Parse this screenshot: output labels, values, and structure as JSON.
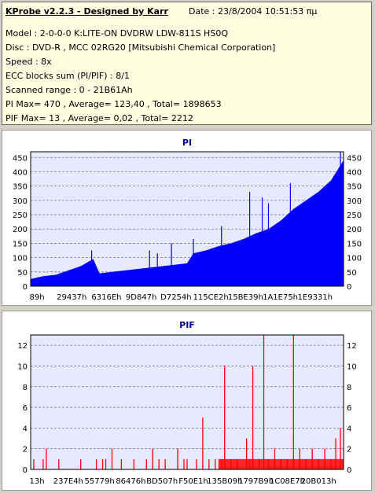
{
  "info": {
    "title": "KProbe v2.2.3 - Designed by Karr",
    "date": "Date : 23/8/2004 10:51:53 πμ",
    "lines": [
      "Model : 2-0-0-0 K:LITE-ON DVDRW LDW-811S   HS0Q",
      "Disc : DVD-R , MCC 02RG20  [Mitsubishi Chemical Corporation]",
      "Speed : 8x",
      "ECC blocks sum (PI/PIF) : 8/1",
      "Scanned range : 0 - 21B61Ah",
      "PI Max= 470 , Average= 123,40 , Total= 1898653",
      "PIF Max= 13 , Average= 0,02 , Total= 2212"
    ]
  },
  "colors": {
    "pi_fill": "#0000ff",
    "pif_bar": "#ff0000",
    "plot_bg": "#e8e8ff",
    "title": "#000080"
  },
  "chart_data": [
    {
      "type": "area",
      "title": "PI",
      "ylim": [
        0,
        470
      ],
      "yticks": [
        0,
        50,
        100,
        150,
        200,
        250,
        300,
        350,
        400,
        450
      ],
      "xtick_labels": [
        "89h",
        "29437h",
        "6316Eh",
        "9D847h",
        "D7254h",
        "115CE2h",
        "15BE39h",
        "1A1E75h",
        "1E9331h"
      ],
      "x": [
        0,
        0.04,
        0.08,
        0.12,
        0.16,
        0.2,
        0.22,
        0.26,
        0.3,
        0.34,
        0.38,
        0.42,
        0.46,
        0.5,
        0.52,
        0.56,
        0.6,
        0.64,
        0.68,
        0.72,
        0.76,
        0.8,
        0.84,
        0.88,
        0.92,
        0.96,
        1.0
      ],
      "values": [
        25,
        35,
        40,
        55,
        70,
        95,
        45,
        50,
        55,
        60,
        65,
        70,
        75,
        80,
        115,
        125,
        140,
        150,
        165,
        185,
        200,
        230,
        270,
        300,
        330,
        370,
        440
      ],
      "spikes": [
        {
          "x": 0.195,
          "value": 125
        },
        {
          "x": 0.38,
          "value": 125
        },
        {
          "x": 0.405,
          "value": 115
        },
        {
          "x": 0.45,
          "value": 150
        },
        {
          "x": 0.52,
          "value": 165
        },
        {
          "x": 0.61,
          "value": 210
        },
        {
          "x": 0.7,
          "value": 330
        },
        {
          "x": 0.74,
          "value": 310
        },
        {
          "x": 0.76,
          "value": 290
        },
        {
          "x": 0.83,
          "value": 360
        },
        {
          "x": 0.99,
          "value": 470
        }
      ]
    },
    {
      "type": "bar",
      "title": "PIF",
      "ylim": [
        0,
        13
      ],
      "yticks": [
        0,
        2,
        4,
        6,
        8,
        10,
        12
      ],
      "xtick_labels": [
        "13h",
        "237E4h",
        "55779h",
        "86476h",
        "BD507h",
        "F50E1h",
        "135B09h",
        "1797B9h",
        "1C08E7h",
        "20B013h"
      ],
      "bars": [
        {
          "x": 0.01,
          "value": 1
        },
        {
          "x": 0.04,
          "value": 1
        },
        {
          "x": 0.05,
          "value": 2
        },
        {
          "x": 0.09,
          "value": 1
        },
        {
          "x": 0.16,
          "value": 1
        },
        {
          "x": 0.21,
          "value": 1
        },
        {
          "x": 0.23,
          "value": 1
        },
        {
          "x": 0.24,
          "value": 1
        },
        {
          "x": 0.26,
          "value": 2
        },
        {
          "x": 0.29,
          "value": 1
        },
        {
          "x": 0.33,
          "value": 1
        },
        {
          "x": 0.37,
          "value": 1
        },
        {
          "x": 0.39,
          "value": 2
        },
        {
          "x": 0.41,
          "value": 1
        },
        {
          "x": 0.43,
          "value": 1
        },
        {
          "x": 0.47,
          "value": 2
        },
        {
          "x": 0.49,
          "value": 1
        },
        {
          "x": 0.5,
          "value": 1
        },
        {
          "x": 0.53,
          "value": 1
        },
        {
          "x": 0.55,
          "value": 5
        },
        {
          "x": 0.57,
          "value": 1
        },
        {
          "x": 0.59,
          "value": 1
        },
        {
          "x": 0.61,
          "value": 1
        },
        {
          "x": 0.62,
          "value": 10
        },
        {
          "x": 0.64,
          "value": 1
        },
        {
          "x": 0.66,
          "value": 1
        },
        {
          "x": 0.69,
          "value": 3
        },
        {
          "x": 0.7,
          "value": 1
        },
        {
          "x": 0.71,
          "value": 10
        },
        {
          "x": 0.73,
          "value": 1
        },
        {
          "x": 0.745,
          "value": 13
        },
        {
          "x": 0.76,
          "value": 1
        },
        {
          "x": 0.78,
          "value": 2
        },
        {
          "x": 0.8,
          "value": 1
        },
        {
          "x": 0.82,
          "value": 1
        },
        {
          "x": 0.84,
          "value": 13
        },
        {
          "x": 0.86,
          "value": 2
        },
        {
          "x": 0.88,
          "value": 1
        },
        {
          "x": 0.9,
          "value": 2
        },
        {
          "x": 0.92,
          "value": 1
        },
        {
          "x": 0.94,
          "value": 2
        },
        {
          "x": 0.96,
          "value": 1
        },
        {
          "x": 0.975,
          "value": 3
        },
        {
          "x": 0.99,
          "value": 4
        }
      ]
    }
  ]
}
